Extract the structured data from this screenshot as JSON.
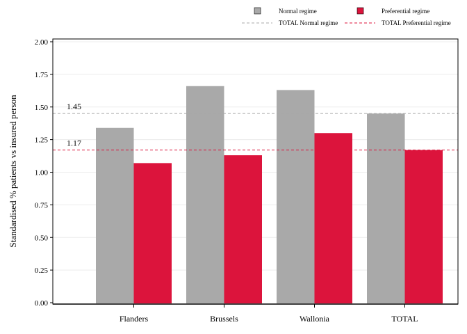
{
  "chart_data": {
    "type": "bar",
    "ylabel": "Standardised % patients vs insured person",
    "xlabel": "",
    "categories": [
      "Flanders",
      "Brussels",
      "Wallonia",
      "TOTAL"
    ],
    "series": [
      {
        "name": "Normal regime",
        "color": "#a9a9a9",
        "values": [
          1.34,
          1.66,
          1.63,
          1.45
        ]
      },
      {
        "name": "Preferential regime",
        "color": "#dc143c",
        "values": [
          1.07,
          1.13,
          1.3,
          1.17
        ]
      }
    ],
    "reference_lines": [
      {
        "name": "TOTAL Normal regime",
        "value": 1.45,
        "label": "1.45",
        "color": "#a9a9a9",
        "dash": "dashed"
      },
      {
        "name": "TOTAL Preferential regime",
        "value": 1.17,
        "label": "1.17",
        "color": "#dc143c",
        "dash": "dashed"
      }
    ],
    "ylim": [
      0,
      2
    ],
    "yticks": [
      "0.00",
      "0.25",
      "0.50",
      "0.75",
      "1.00",
      "1.25",
      "1.50",
      "1.75",
      "2.00"
    ],
    "grid": true,
    "legend_position": "top"
  }
}
